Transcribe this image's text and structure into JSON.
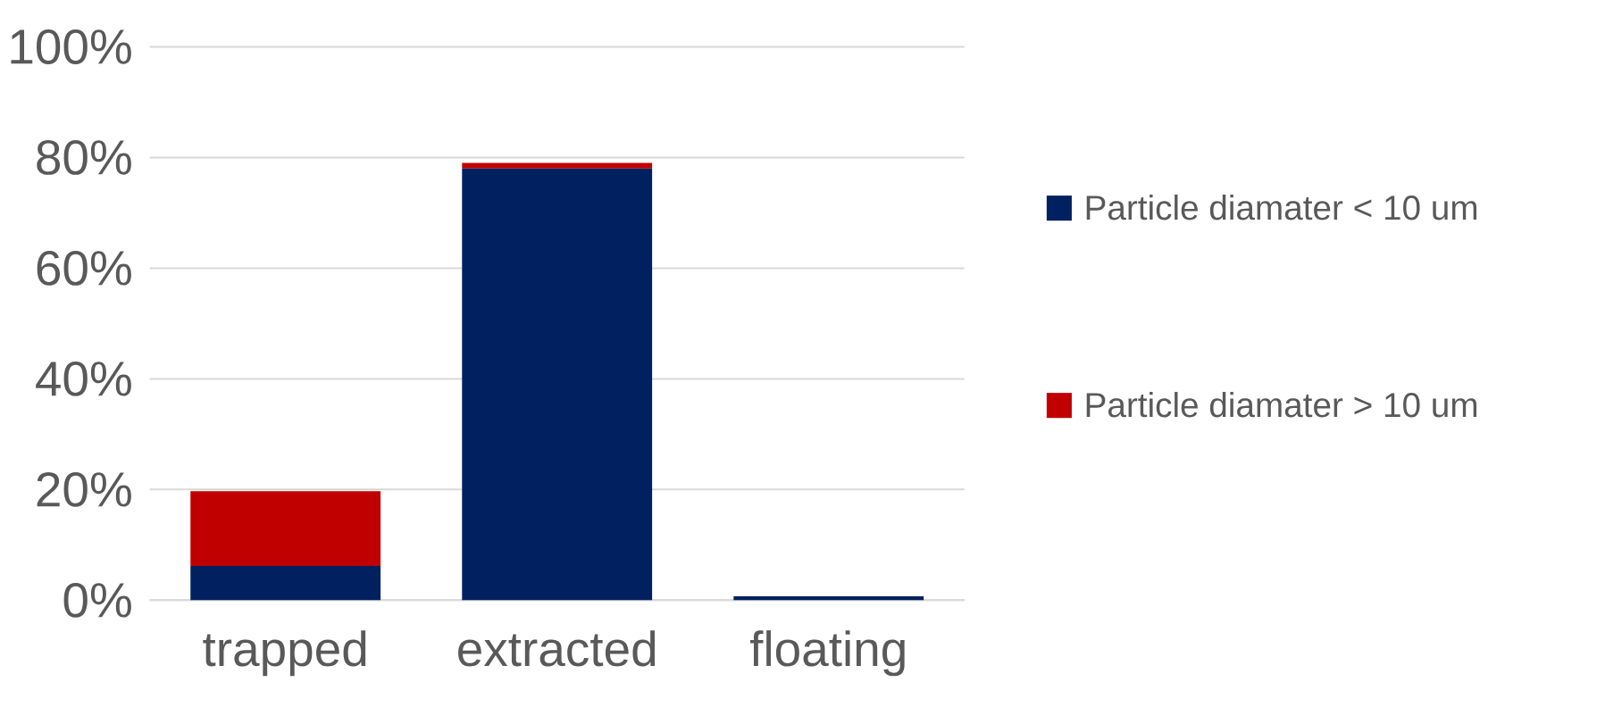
{
  "chart_data": {
    "type": "bar",
    "stacked": true,
    "categories": [
      "trapped",
      "extracted",
      "floating"
    ],
    "series": [
      {
        "name": "Particle diamater  < 10 um",
        "color": "#002060",
        "values": [
          6.2,
          78.0,
          0.7
        ]
      },
      {
        "name": "Particle diamater  > 10 um",
        "color": "#c00000",
        "values": [
          13.5,
          1.0,
          0
        ]
      }
    ],
    "ylim": [
      0,
      100
    ],
    "yticks": [
      {
        "value": 0,
        "label": "0%"
      },
      {
        "value": 20,
        "label": "20%"
      },
      {
        "value": 40,
        "label": "40%"
      },
      {
        "value": 60,
        "label": "60%"
      },
      {
        "value": 80,
        "label": "80%"
      },
      {
        "value": 100,
        "label": "100%"
      }
    ],
    "grid": "y",
    "legend": "right"
  }
}
